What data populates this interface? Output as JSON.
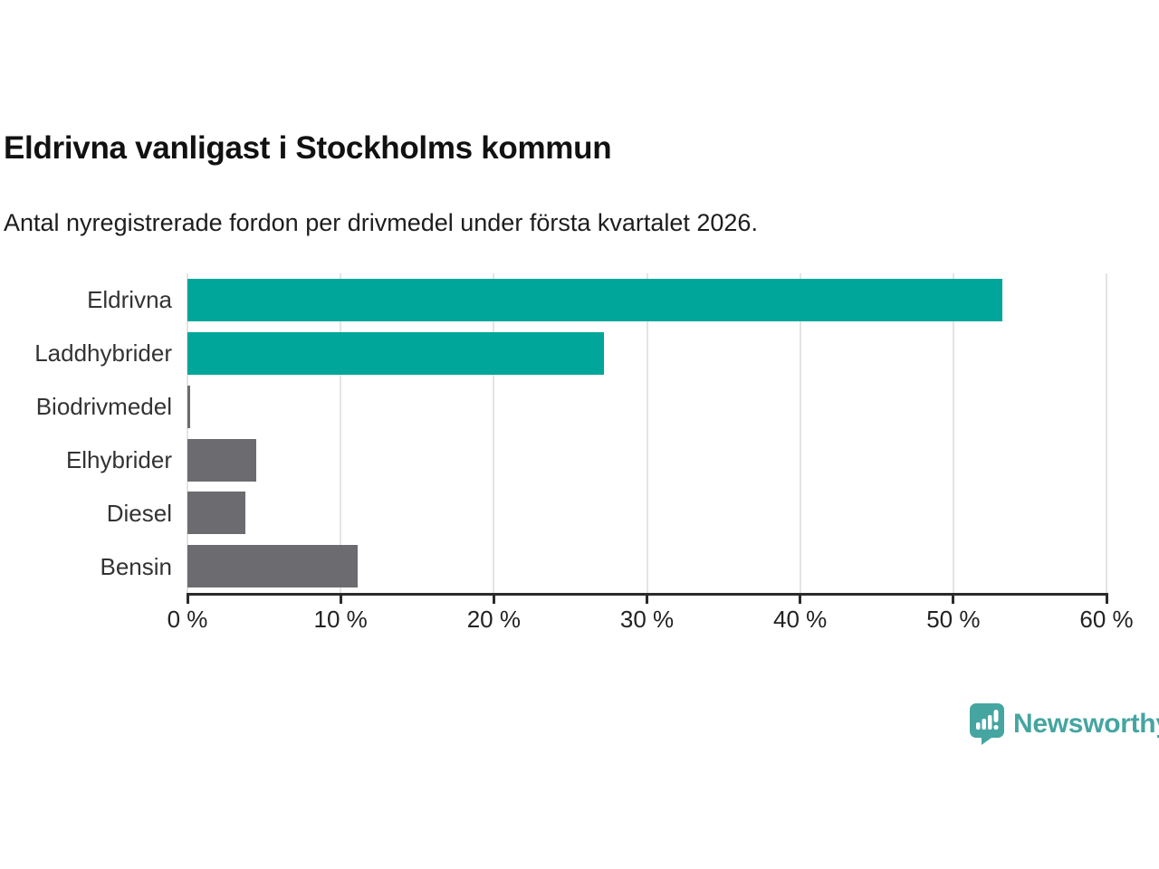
{
  "header": {
    "title": "Eldrivna vanligast i Stockholms kommun",
    "subtitle": "Antal nyregistrerade fordon per drivmedel under första kvartalet 2026."
  },
  "chart_data": {
    "type": "bar",
    "orientation": "horizontal",
    "title": "Eldrivna vanligast i Stockholms kommun",
    "subtitle": "Antal nyregistrerade fordon per drivmedel under första kvartalet 2026.",
    "categories": [
      "Eldrivna",
      "Laddhybrider",
      "Biodrivmedel",
      "Elhybrider",
      "Diesel",
      "Bensin"
    ],
    "values": [
      53.2,
      27.2,
      0.2,
      4.5,
      3.8,
      11.1
    ],
    "unit": "%",
    "xlabel": "",
    "ylabel": "",
    "xlim": [
      0,
      60
    ],
    "x_ticks": [
      0,
      10,
      20,
      30,
      40,
      50,
      60
    ],
    "x_tick_labels": [
      "0 %",
      "10 %",
      "20 %",
      "30 %",
      "40 %",
      "50 %",
      "60 %"
    ],
    "bar_colors": [
      "#00a69a",
      "#00a69a",
      "#6c6c70",
      "#6c6c70",
      "#6c6c70",
      "#6c6c70"
    ],
    "grid": "vertical",
    "legend": "none"
  },
  "branding": {
    "logo_text": "Newsworthy",
    "accent_color": "#45a5a1"
  },
  "colors": {
    "bar_teal": "#00a69a",
    "bar_gray": "#6c6c70",
    "gridline": "#e4e4e4",
    "axis": "#2b2b2b",
    "text": "#111111"
  }
}
